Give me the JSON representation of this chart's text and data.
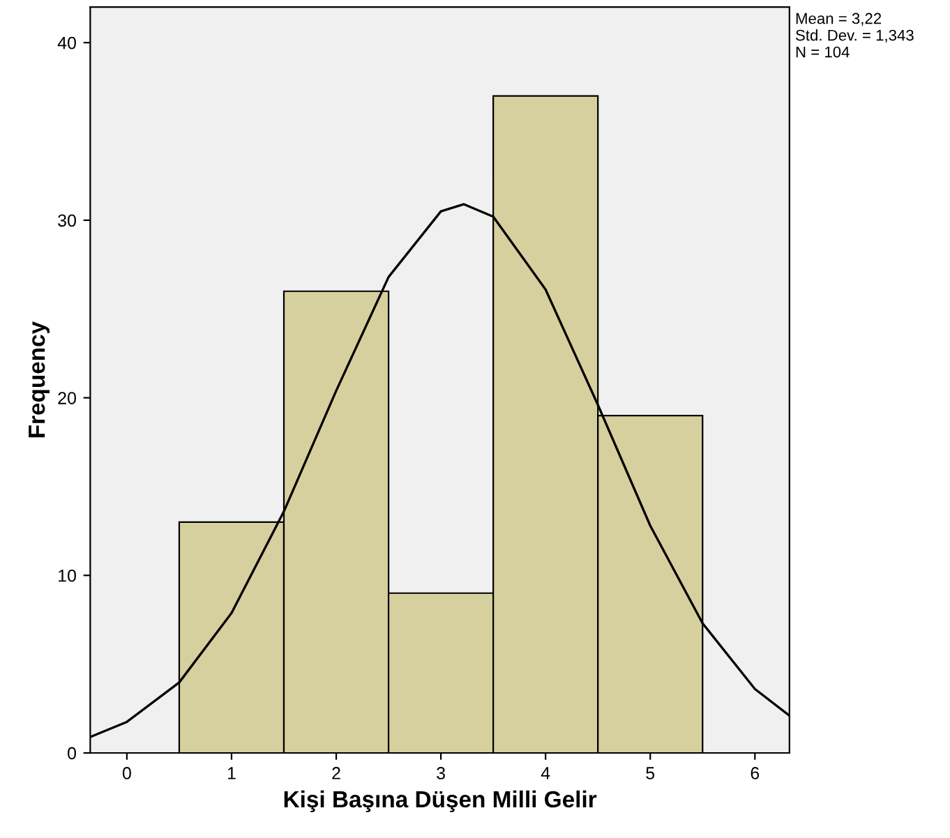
{
  "chart_data": {
    "type": "histogram",
    "xlabel": "Kişi Başına Düşen Milli Gelir",
    "ylabel": "Frequency",
    "bins": [
      0.5,
      1.5,
      2.5,
      3.5,
      4.5,
      5.5
    ],
    "values": [
      13,
      26,
      9,
      37,
      19
    ],
    "color": "#d6d09e",
    "xlim": [
      -0.35,
      6.33
    ],
    "ylim": [
      0,
      42
    ],
    "xticks": [
      0,
      1,
      2,
      3,
      4,
      5,
      6
    ],
    "yticks": [
      0,
      10,
      20,
      30,
      40
    ],
    "grid": false,
    "series": [
      {
        "type": "line",
        "color": "#000000",
        "x": [
          -0.35,
          0,
          0.5,
          1,
          1.5,
          2,
          2.5,
          3,
          3.22,
          3.5,
          4,
          4.5,
          5,
          5.5,
          6,
          6.33
        ],
        "values": [
          0.9,
          1.75,
          3.97,
          7.88,
          13.6,
          20.4,
          26.8,
          30.5,
          30.9,
          30.2,
          26.1,
          19.6,
          12.8,
          7.3,
          3.6,
          2.1
        ]
      }
    ],
    "annotations": [
      "Mean = 3,22",
      "Std. Dev. = 1,343",
      "N = 104"
    ]
  }
}
